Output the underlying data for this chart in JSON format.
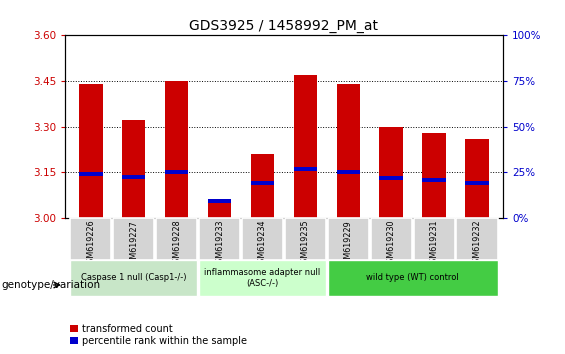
{
  "title": "GDS3925 / 1458992_PM_at",
  "samples": [
    "GSM619226",
    "GSM619227",
    "GSM619228",
    "GSM619233",
    "GSM619234",
    "GSM619235",
    "GSM619229",
    "GSM619230",
    "GSM619231",
    "GSM619232"
  ],
  "bar_values": [
    3.44,
    3.32,
    3.45,
    3.06,
    3.21,
    3.47,
    3.44,
    3.3,
    3.28,
    3.26
  ],
  "blue_values": [
    3.145,
    3.135,
    3.15,
    3.055,
    3.115,
    3.16,
    3.15,
    3.13,
    3.125,
    3.115
  ],
  "ylim": [
    3.0,
    3.6
  ],
  "yticks_left": [
    3.0,
    3.15,
    3.3,
    3.45,
    3.6
  ],
  "yticks_right": [
    0,
    25,
    50,
    75,
    100
  ],
  "groups": [
    {
      "label": "Caspase 1 null (Casp1-/-)",
      "start": 0,
      "end": 3,
      "color": "#c8e6c8"
    },
    {
      "label": "inflammasome adapter null\n(ASC-/-)",
      "start": 3,
      "end": 6,
      "color": "#ccffcc"
    },
    {
      "label": "wild type (WT) control",
      "start": 6,
      "end": 10,
      "color": "#44cc44"
    }
  ],
  "bar_color": "#cc0000",
  "blue_color": "#0000cc",
  "bar_width": 0.55,
  "legend_red": "transformed count",
  "legend_blue": "percentile rank within the sample",
  "genotype_label": "genotype/variation",
  "ylabel_left_color": "#cc0000",
  "ylabel_right_color": "#0000cc",
  "cell_bg": "#d4d4d4",
  "cell_border": "#ffffff"
}
